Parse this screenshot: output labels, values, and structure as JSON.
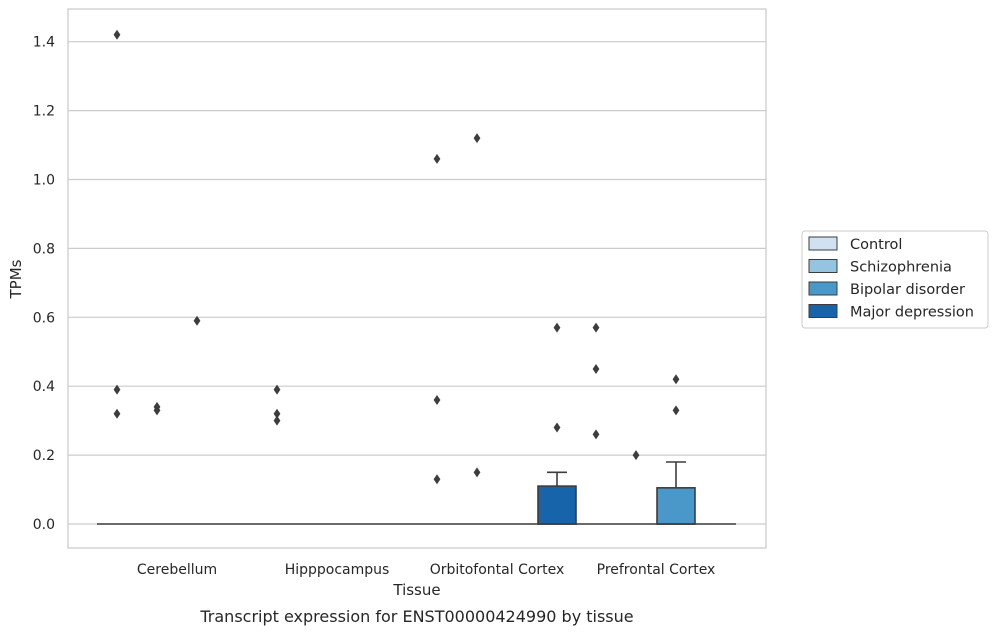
{
  "chart_data": {
    "type": "box",
    "title": "",
    "caption": "Transcript expression for ENST00000424990 by tissue",
    "xlabel": "Tissue",
    "ylabel": "TPMs",
    "ylim": [
      -0.07,
      1.49
    ],
    "yticks": [
      0.0,
      0.2,
      0.4,
      0.6,
      0.8,
      1.0,
      1.2,
      1.4
    ],
    "ytick_labels": [
      "0.0",
      "0.2",
      "0.4",
      "0.6",
      "0.8",
      "1.0",
      "1.2",
      "1.4"
    ],
    "grid": "horizontal",
    "legend_position": "right",
    "categories": [
      "Cerebellum",
      "Hipppocampus",
      "Orbitofontal Cortex",
      "Prefrontal Cortex"
    ],
    "series": [
      {
        "name": "Control",
        "color": "#d0e1f2",
        "boxes": [
          {
            "q1": 0,
            "median": 0,
            "q3": 0,
            "whisker_low": 0,
            "whisker_high": 0,
            "outliers": [
              1.42,
              0.39,
              0.32
            ]
          },
          {
            "q1": 0,
            "median": 0,
            "q3": 0,
            "whisker_low": 0,
            "whisker_high": 0,
            "outliers": [
              0.39,
              0.32,
              0.3
            ]
          },
          {
            "q1": 0,
            "median": 0,
            "q3": 0,
            "whisker_low": 0,
            "whisker_high": 0,
            "outliers": [
              1.06,
              0.36,
              0.13
            ]
          },
          {
            "q1": 0,
            "median": 0,
            "q3": 0,
            "whisker_low": 0,
            "whisker_high": 0,
            "outliers": [
              0.57,
              0.45,
              0.26
            ]
          }
        ]
      },
      {
        "name": "Schizophrenia",
        "color": "#94c4df",
        "boxes": [
          {
            "q1": 0,
            "median": 0,
            "q3": 0,
            "whisker_low": 0,
            "whisker_high": 0,
            "outliers": [
              0.34,
              0.33
            ]
          },
          {
            "q1": 0,
            "median": 0,
            "q3": 0,
            "whisker_low": 0,
            "whisker_high": 0,
            "outliers": []
          },
          {
            "q1": 0,
            "median": 0,
            "q3": 0,
            "whisker_low": 0,
            "whisker_high": 0,
            "outliers": [
              1.12,
              0.15
            ]
          },
          {
            "q1": 0,
            "median": 0,
            "q3": 0,
            "whisker_low": 0,
            "whisker_high": 0,
            "outliers": [
              0.2
            ]
          }
        ]
      },
      {
        "name": "Bipolar disorder",
        "color": "#4a98c9",
        "boxes": [
          {
            "q1": 0,
            "median": 0,
            "q3": 0,
            "whisker_low": 0,
            "whisker_high": 0,
            "outliers": [
              0.59
            ]
          },
          {
            "q1": 0,
            "median": 0,
            "q3": 0,
            "whisker_low": 0,
            "whisker_high": 0,
            "outliers": []
          },
          {
            "q1": 0,
            "median": 0,
            "q3": 0,
            "whisker_low": 0,
            "whisker_high": 0,
            "outliers": []
          },
          {
            "q1": 0,
            "median": 0,
            "q3": 0.105,
            "whisker_low": 0,
            "whisker_high": 0.18,
            "outliers": [
              0.42,
              0.33
            ]
          }
        ]
      },
      {
        "name": "Major depression",
        "color": "#1764ab",
        "boxes": [
          {
            "q1": 0,
            "median": 0,
            "q3": 0,
            "whisker_low": 0,
            "whisker_high": 0,
            "outliers": []
          },
          {
            "q1": 0,
            "median": 0,
            "q3": 0,
            "whisker_low": 0,
            "whisker_high": 0,
            "outliers": []
          },
          {
            "q1": 0,
            "median": 0,
            "q3": 0.11,
            "whisker_low": 0,
            "whisker_high": 0.15,
            "outliers": [
              0.57,
              0.28
            ]
          },
          {
            "q1": 0,
            "median": 0,
            "q3": 0,
            "whisker_low": 0,
            "whisker_high": 0,
            "outliers": []
          }
        ]
      }
    ]
  }
}
